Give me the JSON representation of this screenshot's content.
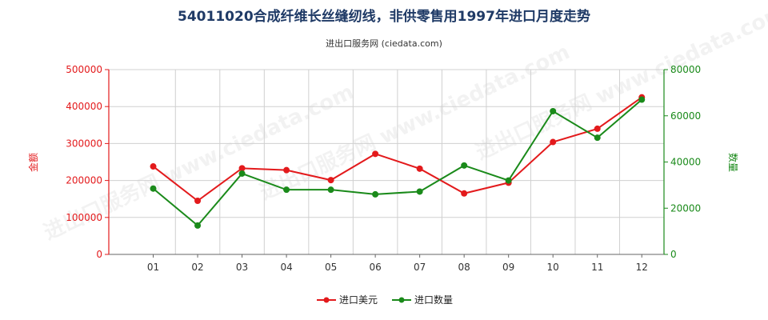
{
  "chart_data": {
    "type": "line",
    "title": "54011020合成纤维长丝缝纫线，非供零售用1997年进口月度走势",
    "subtitle": "进出口服务网 (ciedata.com)",
    "categories": [
      "01",
      "02",
      "03",
      "04",
      "05",
      "06",
      "07",
      "08",
      "09",
      "10",
      "11",
      "12"
    ],
    "y_left": {
      "label": "金额",
      "ylim": [
        0,
        500000
      ],
      "ticks": [
        "0",
        "100000",
        "200000",
        "300000",
        "400000",
        "500000"
      ]
    },
    "y_right": {
      "label": "数量",
      "ylim": [
        0,
        80000
      ],
      "ticks": [
        "0",
        "20000",
        "40000",
        "60000",
        "80000"
      ]
    },
    "series": [
      {
        "name": "进口美元",
        "axis": "left",
        "color": "#e31a1c",
        "values": [
          238000,
          145000,
          233000,
          228000,
          201000,
          272000,
          232000,
          165000,
          194000,
          304000,
          340000,
          425000
        ]
      },
      {
        "name": "进口数量",
        "axis": "right",
        "color": "#1a8a1a",
        "values": [
          28500,
          12500,
          35000,
          28000,
          28000,
          26000,
          27200,
          38500,
          32000,
          62000,
          50500,
          67000
        ]
      }
    ],
    "grid": true,
    "legend": "bottom-center",
    "watermark": "进出口服务网 www.ciedata.com"
  }
}
